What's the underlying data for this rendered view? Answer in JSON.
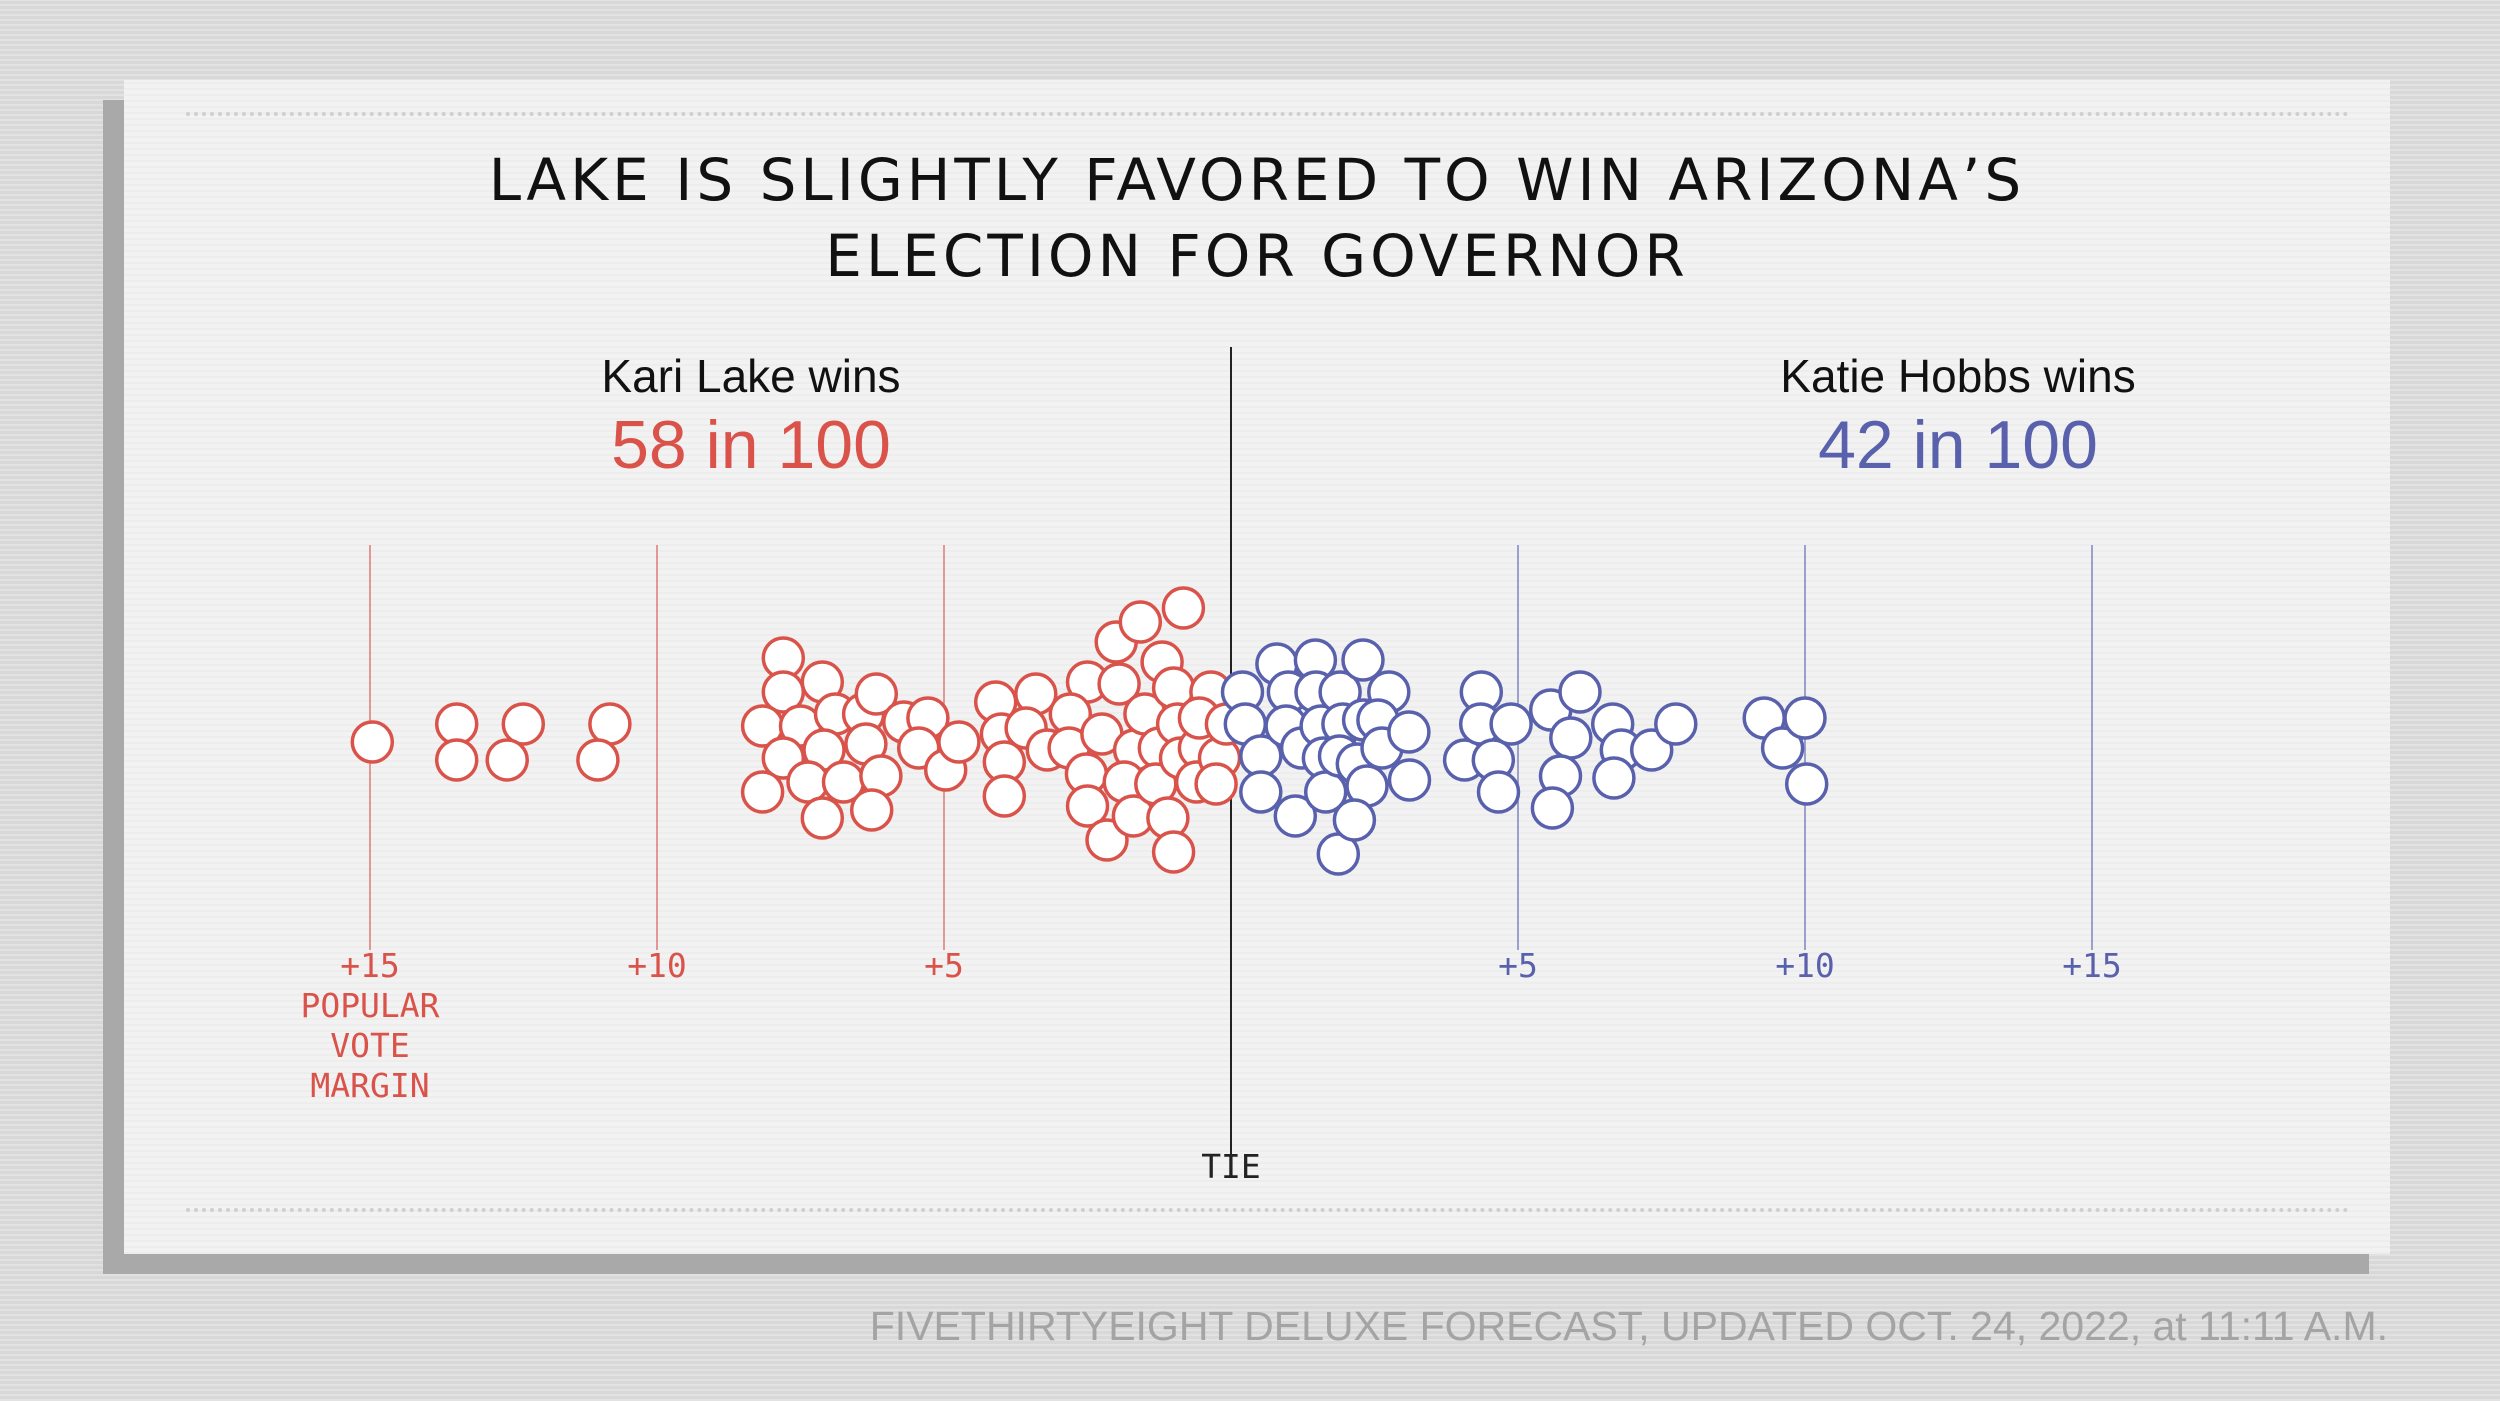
{
  "title_lines": [
    "LAKE IS SLIGHTLY FAVORED TO WIN ARIZONA’S",
    "ELECTION FOR GOVERNOR"
  ],
  "candidates": {
    "left": {
      "name": "Kari Lake wins",
      "odds": "58 in 100",
      "color": "#d9534a"
    },
    "right": {
      "name": "Katie Hobbs wins",
      "odds": "42 in 100",
      "color": "#5961ad"
    }
  },
  "footer": "FIVETHIRTYEIGHT DELUXE FORECAST, UPDATED OCT. 24, 2022, at 11:11 A.M.",
  "chart_data": {
    "type": "scatter",
    "subtype": "dot-plot",
    "title": "LAKE IS SLIGHTLY FAVORED TO WIN ARIZONA’S ELECTION FOR GOVERNOR",
    "xlabel": "POPULAR VOTE MARGIN",
    "center_label": "TIE",
    "xlim": [
      -15,
      15
    ],
    "x_ticks": [
      {
        "value": -15,
        "label": "+15",
        "color": "#d9534a"
      },
      {
        "value": -10,
        "label": "+10",
        "color": "#d9534a"
      },
      {
        "value": -5,
        "label": "+5",
        "color": "#d9534a"
      },
      {
        "value": 5,
        "label": "+5",
        "color": "#5961ad"
      },
      {
        "value": 10,
        "label": "+10",
        "color": "#5961ad"
      },
      {
        "value": 15,
        "label": "+15",
        "color": "#5961ad"
      }
    ],
    "series": [
      {
        "name": "Kari Lake wins",
        "color": "#d9534a",
        "points": [
          [
            -14.96,
            0.0
          ],
          [
            -13.49,
            0.45
          ],
          [
            -13.49,
            -0.45
          ],
          [
            -12.33,
            0.45
          ],
          [
            -12.61,
            -0.45
          ],
          [
            -10.82,
            0.45
          ],
          [
            -11.03,
            -0.45
          ],
          [
            -7.8,
            2.1
          ],
          [
            -7.8,
            1.25
          ],
          [
            -8.16,
            0.4
          ],
          [
            -7.5,
            0.4
          ],
          [
            -7.8,
            -0.4
          ],
          [
            -8.16,
            -1.25
          ],
          [
            -7.12,
            1.5
          ],
          [
            -6.89,
            0.7
          ],
          [
            -7.09,
            -0.2
          ],
          [
            -7.37,
            -1.0
          ],
          [
            -7.12,
            -1.9
          ],
          [
            -6.4,
            0.7
          ],
          [
            -6.75,
            -1.0
          ],
          [
            -6.18,
            1.2
          ],
          [
            -6.36,
            -0.05
          ],
          [
            -6.1,
            -0.85
          ],
          [
            -6.26,
            -1.7
          ],
          [
            -5.7,
            0.5
          ],
          [
            -5.28,
            0.6
          ],
          [
            -5.44,
            -0.15
          ],
          [
            -4.97,
            -0.7
          ],
          [
            -4.74,
            0.0
          ],
          [
            -4.1,
            1.0
          ],
          [
            -4.0,
            0.2
          ],
          [
            -3.95,
            -0.5
          ],
          [
            -3.95,
            -1.35
          ],
          [
            -3.4,
            1.2
          ],
          [
            -3.57,
            0.35
          ],
          [
            -3.2,
            -0.2
          ],
          [
            -2.5,
            1.5
          ],
          [
            -2.8,
            0.7
          ],
          [
            -2.82,
            -0.15
          ],
          [
            -2.52,
            -0.8
          ],
          [
            -2.5,
            -1.6
          ],
          [
            -2.16,
            -2.45
          ],
          [
            -2.0,
            2.5
          ],
          [
            -2.25,
            0.2
          ],
          [
            -1.68,
            -0.2
          ],
          [
            -1.86,
            -1.0
          ],
          [
            -1.7,
            -1.85
          ],
          [
            -1.95,
            1.45
          ],
          [
            -1.5,
            0.7
          ],
          [
            -1.2,
            2.0
          ],
          [
            -1.58,
            3.0
          ],
          [
            -1.25,
            -0.15
          ],
          [
            -1.31,
            -1.05
          ],
          [
            -1.0,
            1.35
          ],
          [
            -0.83,
            3.35
          ],
          [
            -0.93,
            0.45
          ],
          [
            -0.88,
            -0.4
          ],
          [
            -1.1,
            -1.9
          ],
          [
            -1.0,
            -2.75
          ],
          [
            -0.55,
            -0.15
          ],
          [
            -0.35,
            1.25
          ],
          [
            -0.55,
            0.6
          ],
          [
            -0.6,
            -1.0
          ],
          [
            -0.2,
            -0.4
          ],
          [
            -0.08,
            0.45
          ],
          [
            -0.26,
            -1.05
          ]
        ]
      },
      {
        "name": "Katie Hobbs wins",
        "color": "#5961ad",
        "points": [
          [
            0.2,
            1.25
          ],
          [
            0.25,
            0.45
          ],
          [
            0.52,
            -0.35
          ],
          [
            0.52,
            -1.25
          ],
          [
            0.8,
            1.95
          ],
          [
            1.0,
            1.25
          ],
          [
            0.96,
            0.4
          ],
          [
            1.23,
            -0.15
          ],
          [
            1.12,
            -1.85
          ],
          [
            1.47,
            2.05
          ],
          [
            1.48,
            1.25
          ],
          [
            1.57,
            0.4
          ],
          [
            1.61,
            -0.4
          ],
          [
            1.65,
            -1.25
          ],
          [
            1.9,
            1.25
          ],
          [
            1.95,
            0.45
          ],
          [
            1.89,
            -0.35
          ],
          [
            1.87,
            -2.8
          ],
          [
            2.3,
            2.05
          ],
          [
            2.31,
            0.55
          ],
          [
            2.2,
            -0.55
          ],
          [
            2.37,
            -1.1
          ],
          [
            2.15,
            -1.95
          ],
          [
            2.75,
            1.25
          ],
          [
            2.56,
            0.55
          ],
          [
            2.63,
            -0.15
          ],
          [
            3.1,
            0.25
          ],
          [
            3.11,
            -0.95
          ],
          [
            4.07,
            -0.45
          ],
          [
            4.36,
            1.25
          ],
          [
            4.35,
            0.45
          ],
          [
            4.57,
            -0.45
          ],
          [
            4.66,
            -1.25
          ],
          [
            4.88,
            0.45
          ],
          [
            5.57,
            0.8
          ],
          [
            6.08,
            1.25
          ],
          [
            5.92,
            0.1
          ],
          [
            5.74,
            -0.85
          ],
          [
            5.6,
            -1.65
          ],
          [
            6.65,
            0.45
          ],
          [
            6.8,
            -0.2
          ],
          [
            6.67,
            -0.9
          ],
          [
            7.33,
            -0.2
          ],
          [
            7.75,
            0.45
          ],
          [
            9.29,
            0.6
          ],
          [
            9.61,
            -0.15
          ],
          [
            10.0,
            0.6
          ],
          [
            10.03,
            -1.05
          ]
        ]
      }
    ]
  }
}
